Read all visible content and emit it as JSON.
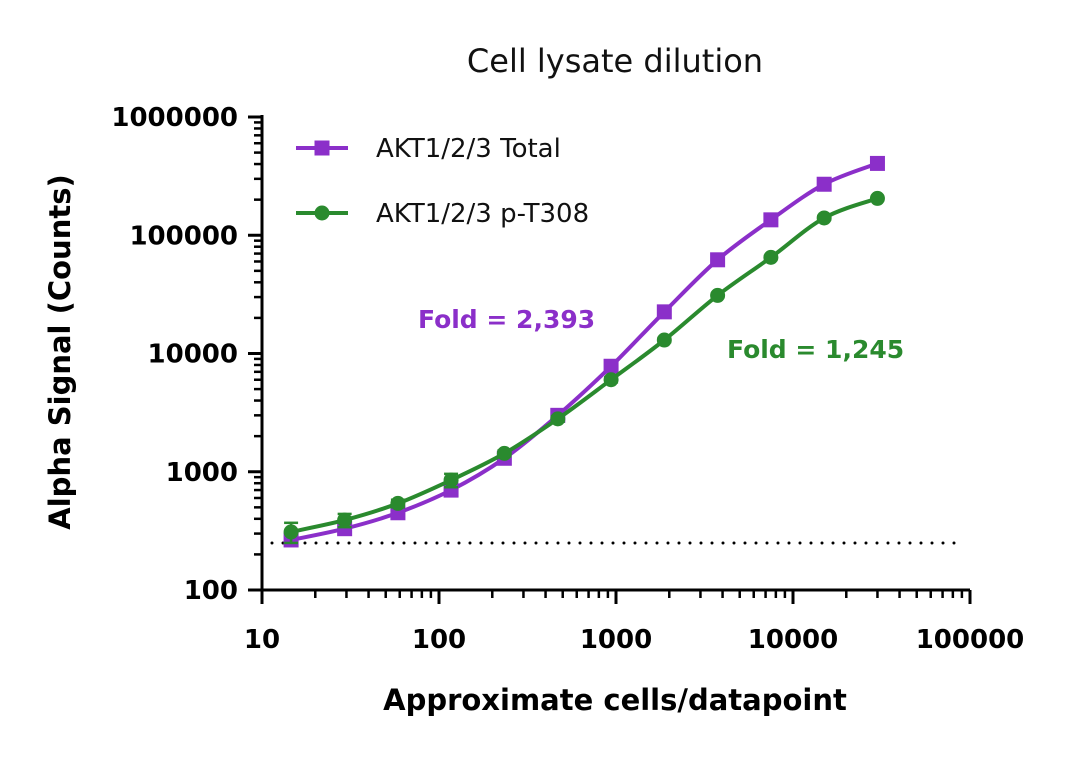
{
  "chart_data": {
    "type": "line",
    "title": "Cell lysate dilution",
    "xlabel": "Approximate cells/datapoint",
    "ylabel": "Alpha Signal (Counts)",
    "xscale": "log",
    "yscale": "log",
    "xlim": [
      10,
      100000
    ],
    "ylim": [
      100,
      1000000
    ],
    "xticks": [
      10,
      100,
      1000,
      10000,
      100000
    ],
    "xtick_labels": [
      "10",
      "100",
      "1000",
      "10000",
      "100000"
    ],
    "yticks": [
      100,
      1000,
      10000,
      100000,
      1000000
    ],
    "ytick_labels": [
      "100",
      "1000",
      "10000",
      "100000",
      "1000000"
    ],
    "grid": false,
    "legend_position": "top-left",
    "background_line": {
      "y": 250,
      "style": "dotted",
      "color": "#000000"
    },
    "series": [
      {
        "name": "AKT1/2/3 Total",
        "color": "#8B2FC9",
        "marker": "square",
        "x": [
          14.6,
          29.3,
          58.6,
          117,
          234,
          469,
          938,
          1875,
          3750,
          7500,
          15000,
          30000
        ],
        "y": [
          265,
          330,
          450,
          700,
          1300,
          3000,
          7800,
          22500,
          62000,
          135000,
          270000,
          405000
        ],
        "error": [
          20,
          30,
          35,
          80,
          60,
          150,
          300,
          800,
          2000,
          4000,
          8000,
          10000
        ]
      },
      {
        "name": "AKT1/2/3 p-T308",
        "color": "#2A8A2E",
        "marker": "circle",
        "x": [
          14.6,
          29.3,
          58.6,
          117,
          234,
          469,
          938,
          1875,
          3750,
          7500,
          15000,
          30000
        ],
        "y": [
          310,
          390,
          540,
          850,
          1430,
          2800,
          6000,
          13000,
          31000,
          65000,
          140000,
          205000
        ],
        "error": [
          60,
          50,
          40,
          110,
          80,
          150,
          300,
          500,
          1000,
          2000,
          5000,
          6000
        ]
      }
    ],
    "annotations": [
      {
        "text": "Fold = 2,393",
        "color": "#8B2FC9",
        "series": "AKT1/2/3 Total"
      },
      {
        "text": "Fold = 1,245",
        "color": "#2A8A2E",
        "series": "AKT1/2/3 p-T308"
      }
    ]
  }
}
